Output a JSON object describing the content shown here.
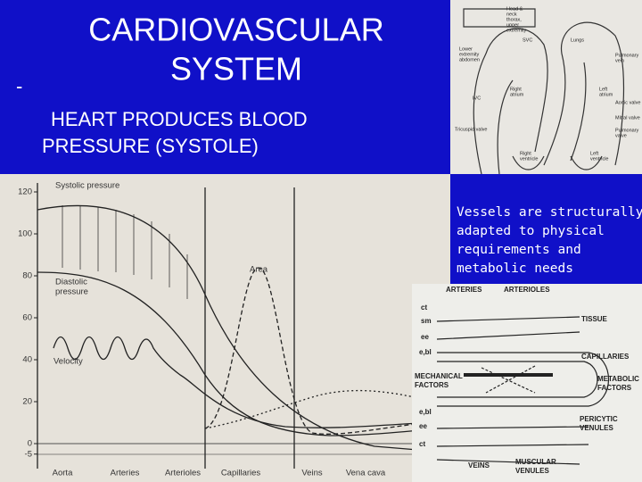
{
  "slide": {
    "title_lines": [
      "CARDIOVASCULAR",
      "SYSTEM"
    ],
    "bullet": "-",
    "subtitle_lines": [
      "HEART PRODUCES BLOOD",
      "PRESSURE  (SYSTOLE)"
    ],
    "caption_lines": [
      "Vessels are structurally",
      "adapted to physical",
      "requirements and",
      "metabolic needs"
    ],
    "graph": {
      "yticks": [
        120,
        100,
        80,
        60,
        40,
        20,
        0,
        -5
      ],
      "categories": [
        "Aorta",
        "Arteries",
        "Arterioles",
        "Capillaries",
        "Veins",
        "Vena cava"
      ],
      "curve_labels": [
        "Systolic pressure",
        "Diastolic",
        "pressure",
        "Velocity",
        "Area"
      ]
    },
    "heart_diagram": {
      "labels": [
        "Head &",
        "neck",
        "thorax,",
        "upper",
        "extremity",
        "Lungs",
        "Lower",
        "extremity",
        "abdomen",
        "Pulmonary",
        "vein",
        "Right",
        "atrium",
        "Left",
        "atrium",
        "Aortic valve",
        "Mitral valve",
        "Tricuspid valve",
        "Pulmonary",
        "valve",
        "Right",
        "ventricle",
        "Left",
        "ventricle",
        "SVC",
        "IVC"
      ]
    },
    "vessel_diagram": {
      "labels": [
        "ARTERIES",
        "ARTERIOLES",
        "TISSUE",
        "CAPILLARIES",
        "MECHANICAL",
        "FACTORS",
        "METABOLIC",
        "FACTORS",
        "PERICYTIC",
        "VENULES",
        "VEINS",
        "MUSCULAR",
        "VENULES",
        "ct",
        "sm",
        "ee",
        "e,bl",
        "e,bl",
        "ee",
        "ct"
      ]
    }
  }
}
